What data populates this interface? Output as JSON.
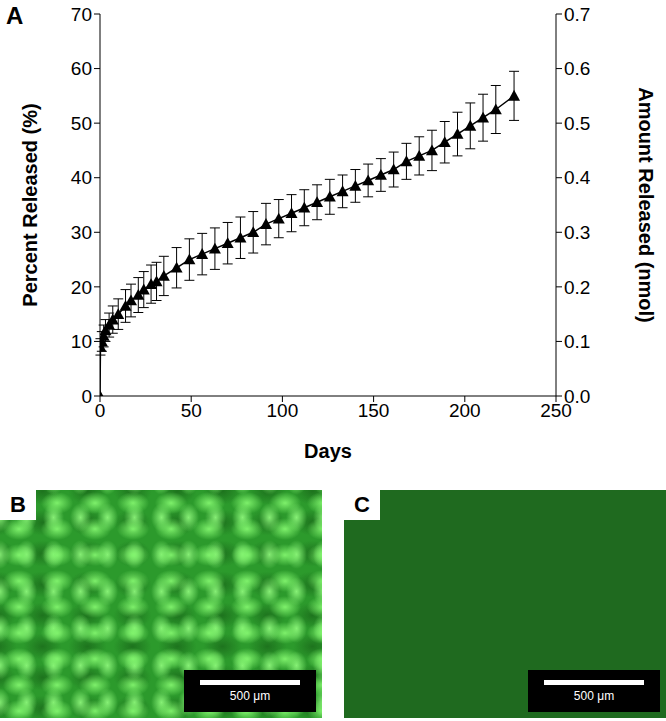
{
  "chart_data": {
    "type": "line",
    "annotations": [
      "A"
    ],
    "xlabel": "Days",
    "ylabel": "Percent Released (%)",
    "y2label": "Amount Released (nmol)",
    "x": [
      0,
      0.25,
      1,
      2,
      3,
      5,
      7,
      10,
      14,
      17,
      21,
      24,
      28,
      31,
      35,
      42,
      49,
      56,
      63,
      70,
      77,
      84,
      91,
      98,
      105,
      112,
      119,
      126,
      133,
      140,
      147,
      154,
      161,
      168,
      175,
      182,
      189,
      196,
      203,
      210,
      217,
      227
    ],
    "series": [
      {
        "color": "#000000",
        "marker": "triangle",
        "line_style": "solid",
        "values": [
          0,
          9,
          10,
          11,
          12,
          13,
          14,
          15,
          16.5,
          17.5,
          18.5,
          19.5,
          20.5,
          21,
          22,
          23.5,
          25,
          26,
          27,
          28,
          29,
          30,
          31.5,
          32.5,
          33.5,
          34.5,
          35.5,
          36.5,
          37.5,
          38.5,
          39.5,
          40.5,
          41.5,
          43,
          44,
          45,
          46.5,
          48,
          49.5,
          51,
          52.5,
          55
        ],
        "errors": [
          0,
          1.5,
          1.8,
          2,
          2,
          2.2,
          2.5,
          2.8,
          3,
          3,
          3.2,
          3.3,
          3.5,
          3.5,
          3.6,
          3.7,
          3.8,
          3.8,
          3.8,
          3.8,
          3.8,
          3.8,
          3.8,
          3.5,
          3.4,
          3.3,
          3.2,
          3.2,
          3.0,
          3.0,
          3.0,
          3.0,
          3.2,
          3.3,
          3.5,
          3.7,
          3.8,
          4,
          4.2,
          4.3,
          4.4,
          4.5
        ]
      }
    ],
    "xlim": [
      0,
      250
    ],
    "xticks": [
      0,
      50,
      100,
      150,
      200,
      250
    ],
    "ylim": [
      0,
      70
    ],
    "yticks": [
      0,
      10,
      20,
      30,
      40,
      50,
      60,
      70
    ],
    "y2lim": [
      0,
      0.7
    ],
    "y2ticks": [
      {
        "value": 0,
        "label": "0.0"
      },
      0.1,
      0.2,
      0.3,
      0.4,
      0.5,
      0.6,
      0.7
    ],
    "grid": false
  },
  "images": [
    {
      "label": "B",
      "scale_bar": "500 μm"
    },
    {
      "label": "C",
      "scale_bar": "500 μm"
    }
  ]
}
